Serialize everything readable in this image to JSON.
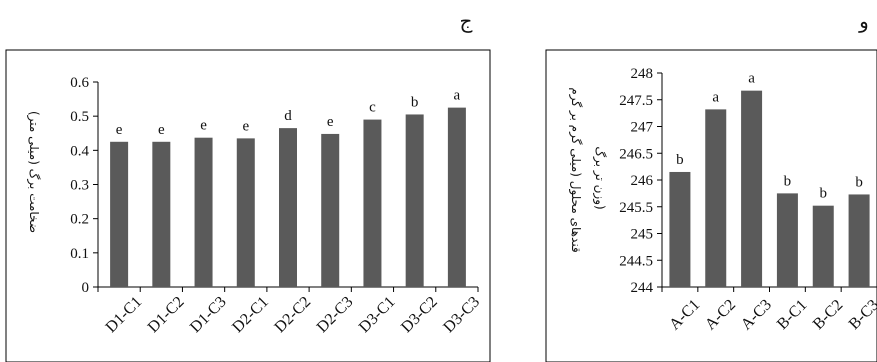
{
  "colors": {
    "bar": "#5a5a5a",
    "axis": "#000000",
    "frame": "#000000"
  },
  "chart_data": [
    {
      "type": "bar",
      "panel_letter": "ج",
      "ylabel": "ضخامت برگ (میلی متر)",
      "ylim": [
        0,
        0.6
      ],
      "ytick_values": [
        0,
        0.1,
        0.2,
        0.3,
        0.4,
        0.5,
        0.6
      ],
      "ytick_labels": [
        "0",
        "0.1",
        "0.2",
        "0.3",
        "0.4",
        "0.5",
        "0.6"
      ],
      "categories": [
        "D1-C1",
        "D1-C2",
        "D1-C3",
        "D2-C1",
        "D2-C2",
        "D2-C3",
        "D3-C1",
        "D3-C2",
        "D3-C3"
      ],
      "values": [
        0.425,
        0.425,
        0.437,
        0.435,
        0.465,
        0.448,
        0.49,
        0.505,
        0.525
      ],
      "letters": [
        "e",
        "e",
        "e",
        "e",
        "d",
        "e",
        "c",
        "b",
        "a"
      ]
    },
    {
      "type": "bar",
      "panel_letter": "و",
      "ylabel": [
        "قندهای محلول (میلی گرم بر گرم",
        "وزن تر برگ)"
      ],
      "ylim": [
        244,
        248
      ],
      "ytick_values": [
        244,
        244.5,
        245,
        245.5,
        246,
        246.5,
        247,
        247.5,
        248
      ],
      "ytick_labels": [
        "244",
        "244.5",
        "245",
        "245.5",
        "246",
        "246.5",
        "247",
        "247.5",
        "248"
      ],
      "categories": [
        "A-C1",
        "A-C2",
        "A-C3",
        "B-C1",
        "B-C2",
        "B-C3"
      ],
      "values": [
        246.15,
        247.32,
        247.67,
        245.75,
        245.52,
        245.73
      ],
      "letters": [
        "b",
        "a",
        "a",
        "b",
        "b",
        "b"
      ]
    }
  ]
}
